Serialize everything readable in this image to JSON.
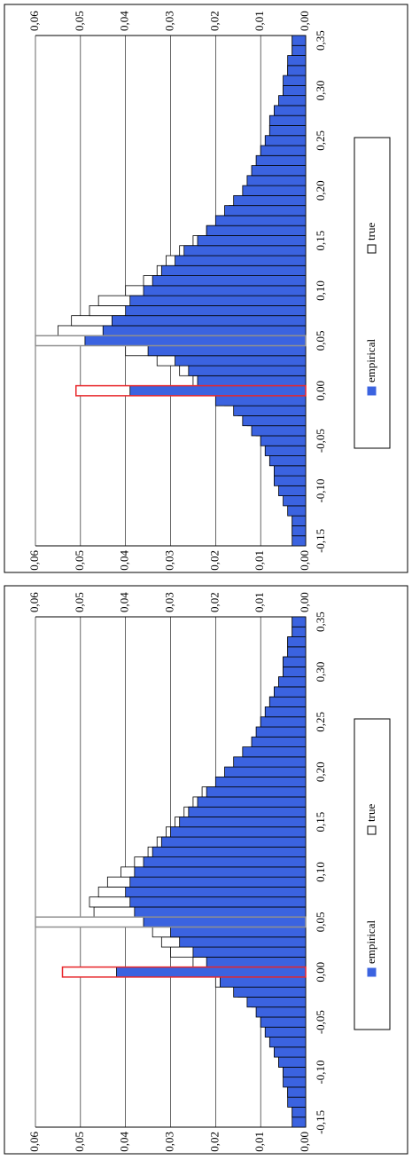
{
  "chart_data": [
    {
      "type": "bar",
      "categories": [
        "-0,15",
        null,
        null,
        null,
        null,
        "-0,10",
        null,
        null,
        null,
        null,
        "-0,05",
        null,
        null,
        null,
        null,
        "0,00",
        null,
        null,
        null,
        null,
        "0,05",
        null,
        null,
        null,
        null,
        "0,10",
        null,
        null,
        null,
        null,
        "0,15",
        null,
        null,
        null,
        null,
        "0,20",
        null,
        null,
        null,
        null,
        "0,25",
        null,
        null,
        null,
        null,
        "0,30",
        null,
        null,
        null,
        null,
        "0,35"
      ],
      "series": [
        {
          "name": "empirical",
          "color": "#3b63e0",
          "values": [
            0.003,
            0.003,
            0.003,
            0.004,
            0.005,
            0.006,
            0.007,
            0.007,
            0.008,
            0.009,
            0.01,
            0.012,
            0.014,
            0.016,
            0.02,
            0.039,
            0.024,
            0.026,
            0.029,
            0.035,
            0.049,
            0.045,
            0.043,
            0.04,
            0.039,
            0.036,
            0.034,
            0.032,
            0.029,
            0.027,
            0.024,
            0.022,
            0.02,
            0.018,
            0.016,
            0.014,
            0.013,
            0.012,
            0.011,
            0.01,
            0.009,
            0.008,
            0.008,
            0.007,
            0.006,
            0.005,
            0.005,
            0.004,
            0.004,
            0.003,
            0.003
          ]
        },
        {
          "name": "true",
          "color": "#ffffff",
          "values": [
            0.002,
            0.003,
            0.003,
            0.003,
            0.004,
            0.005,
            0.006,
            0.007,
            0.007,
            0.008,
            0.009,
            0.011,
            0.013,
            0.015,
            0.018,
            0.051,
            0.025,
            0.028,
            0.033,
            0.04,
            0.06,
            0.055,
            0.052,
            0.048,
            0.046,
            0.04,
            0.036,
            0.033,
            0.031,
            0.028,
            0.025,
            0.022,
            0.019,
            0.017,
            0.015,
            0.013,
            0.012,
            0.011,
            0.01,
            0.009,
            0.008,
            0.008,
            0.007,
            0.006,
            0.005,
            0.005,
            0.004,
            0.004,
            0.003,
            0.003,
            0.003
          ]
        }
      ],
      "highlights": [
        {
          "series": 1,
          "index": 15,
          "color": "#e8262a"
        },
        {
          "series": 1,
          "index": 20,
          "color": "#909090"
        }
      ],
      "ylim": [
        0,
        0.06
      ],
      "yticks": [
        {
          "value": 0,
          "label": "0,00"
        },
        {
          "value": 0.01,
          "label": "0,01"
        },
        {
          "value": 0.02,
          "label": "0,02"
        },
        {
          "value": 0.03,
          "label": "0,03"
        },
        {
          "value": 0.04,
          "label": "0,04"
        },
        {
          "value": 0.05,
          "label": "0,05"
        },
        {
          "value": 0.06,
          "label": "0,06"
        }
      ],
      "grid": true,
      "legend": "bottom"
    },
    {
      "type": "bar",
      "categories": [
        "-0,15",
        null,
        null,
        null,
        null,
        "-0,10",
        null,
        null,
        null,
        null,
        "-0,05",
        null,
        null,
        null,
        null,
        "0,00",
        null,
        null,
        null,
        null,
        "0,05",
        null,
        null,
        null,
        null,
        "0,10",
        null,
        null,
        null,
        null,
        "0,15",
        null,
        null,
        null,
        null,
        "0,20",
        null,
        null,
        null,
        null,
        "0,25",
        null,
        null,
        null,
        null,
        "0,30",
        null,
        null,
        null,
        null,
        "0,35"
      ],
      "series": [
        {
          "name": "empirical",
          "color": "#3b63e0",
          "values": [
            0.003,
            0.003,
            0.004,
            0.004,
            0.005,
            0.005,
            0.006,
            0.007,
            0.008,
            0.009,
            0.01,
            0.011,
            0.013,
            0.016,
            0.019,
            0.042,
            0.022,
            0.025,
            0.028,
            0.03,
            0.036,
            0.038,
            0.039,
            0.04,
            0.039,
            0.038,
            0.036,
            0.034,
            0.032,
            0.03,
            0.028,
            0.026,
            0.024,
            0.022,
            0.02,
            0.018,
            0.016,
            0.014,
            0.012,
            0.011,
            0.01,
            0.009,
            0.008,
            0.007,
            0.006,
            0.005,
            0.005,
            0.004,
            0.004,
            0.003,
            0.003
          ]
        },
        {
          "name": "true",
          "color": "#ffffff",
          "values": [
            0.002,
            0.003,
            0.003,
            0.004,
            0.004,
            0.005,
            0.006,
            0.006,
            0.007,
            0.008,
            0.009,
            0.01,
            0.012,
            0.015,
            0.02,
            0.054,
            0.025,
            0.03,
            0.032,
            0.034,
            0.06,
            0.047,
            0.048,
            0.046,
            0.044,
            0.041,
            0.038,
            0.035,
            0.033,
            0.031,
            0.029,
            0.027,
            0.025,
            0.023,
            0.017,
            0.015,
            0.013,
            0.012,
            0.011,
            0.01,
            0.009,
            0.008,
            0.008,
            0.007,
            0.006,
            0.005,
            0.005,
            0.004,
            0.004,
            0.003,
            0.003
          ]
        }
      ],
      "highlights": [
        {
          "series": 1,
          "index": 15,
          "color": "#e8262a"
        },
        {
          "series": 1,
          "index": 20,
          "color": "#909090"
        }
      ],
      "ylim": [
        0,
        0.06
      ],
      "yticks": [
        {
          "value": 0,
          "label": "0,00"
        },
        {
          "value": 0.01,
          "label": "0,01"
        },
        {
          "value": 0.02,
          "label": "0,02"
        },
        {
          "value": 0.03,
          "label": "0,03"
        },
        {
          "value": 0.04,
          "label": "0,04"
        },
        {
          "value": 0.05,
          "label": "0,05"
        },
        {
          "value": 0.06,
          "label": "0,06"
        }
      ],
      "grid": true,
      "legend": "bottom"
    }
  ]
}
